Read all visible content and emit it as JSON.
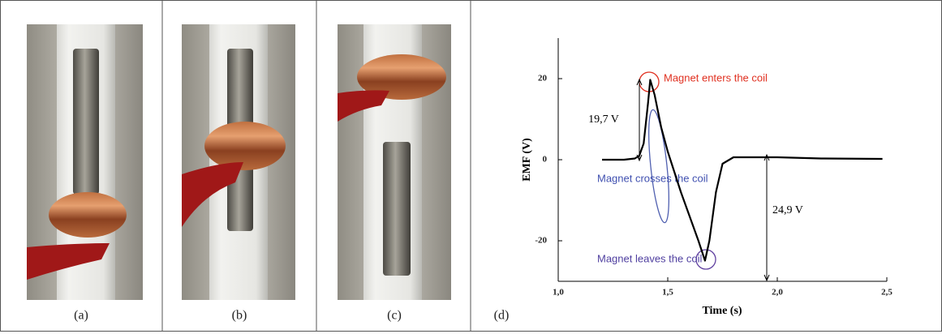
{
  "panels": [
    "(a)",
    "(b)",
    "(c)"
  ],
  "chart_data": {
    "type": "line",
    "panel_label": "(d)",
    "x_label": "Time (s)",
    "y_label": "EMF (V)",
    "x": [
      1.2,
      1.3,
      1.35,
      1.37,
      1.39,
      1.41,
      1.42,
      1.44,
      1.47,
      1.5,
      1.53,
      1.56,
      1.6,
      1.64,
      1.67,
      1.69,
      1.72,
      1.75,
      1.8,
      2.0,
      2.2,
      2.48
    ],
    "series": [
      {
        "color": "#000000",
        "values": [
          0,
          0,
          0.3,
          1,
          4,
          14,
          19.7,
          16,
          8,
          2,
          -3,
          -8,
          -14,
          -20,
          -24.9,
          -20,
          -8,
          -1,
          0.6,
          0.6,
          0.3,
          0.2
        ]
      }
    ],
    "xlim": [
      1.0,
      2.5
    ],
    "xticks": [
      {
        "value": 1.0,
        "label": "1,0"
      },
      {
        "value": 1.5,
        "label": "1,5"
      },
      {
        "value": 2.0,
        "label": "2,0"
      },
      {
        "value": 2.5,
        "label": "2,5"
      }
    ],
    "ylim": [
      -30,
      30
    ],
    "yticks": [
      20,
      0,
      -20
    ],
    "annotations": [
      "Magnet enters the coil",
      "19,7 V",
      "Magnet crosses the coil",
      "24,9 V",
      "Magnet leaves the coil"
    ]
  }
}
